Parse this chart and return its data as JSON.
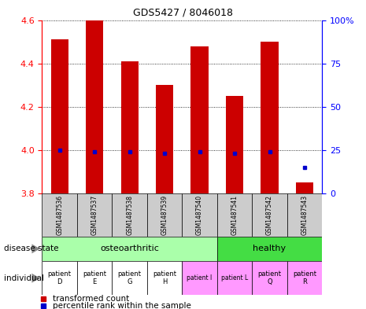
{
  "title": "GDS5427 / 8046018",
  "samples": [
    "GSM1487536",
    "GSM1487537",
    "GSM1487538",
    "GSM1487539",
    "GSM1487540",
    "GSM1487541",
    "GSM1487542",
    "GSM1487543"
  ],
  "transformed_counts": [
    4.51,
    4.6,
    4.41,
    4.3,
    4.48,
    4.25,
    4.5,
    3.85
  ],
  "percentile_ranks": [
    25,
    24,
    24,
    23,
    24,
    23,
    24,
    15
  ],
  "ylim": [
    3.8,
    4.6
  ],
  "yticks": [
    3.8,
    4.0,
    4.2,
    4.4,
    4.6
  ],
  "right_yticks": [
    0,
    25,
    50,
    75,
    100
  ],
  "bar_color": "#cc0000",
  "dot_color": "#0000cc",
  "disease_state_osteo_color": "#aaffaa",
  "disease_state_healthy_color": "#44dd44",
  "individual_colors": [
    "#ffffff",
    "#ffffff",
    "#ffffff",
    "#ffffff",
    "#ff99ff",
    "#ff99ff",
    "#ff99ff",
    "#ff99ff"
  ],
  "individual_labels": [
    "patient\nD",
    "patient\nE",
    "patient\nG",
    "patient\nH",
    "patient I",
    "patient L",
    "patient\nQ",
    "patient\nR"
  ],
  "sample_bg_color": "#cccccc",
  "legend_red_label": "transformed count",
  "legend_blue_label": "percentile rank within the sample"
}
